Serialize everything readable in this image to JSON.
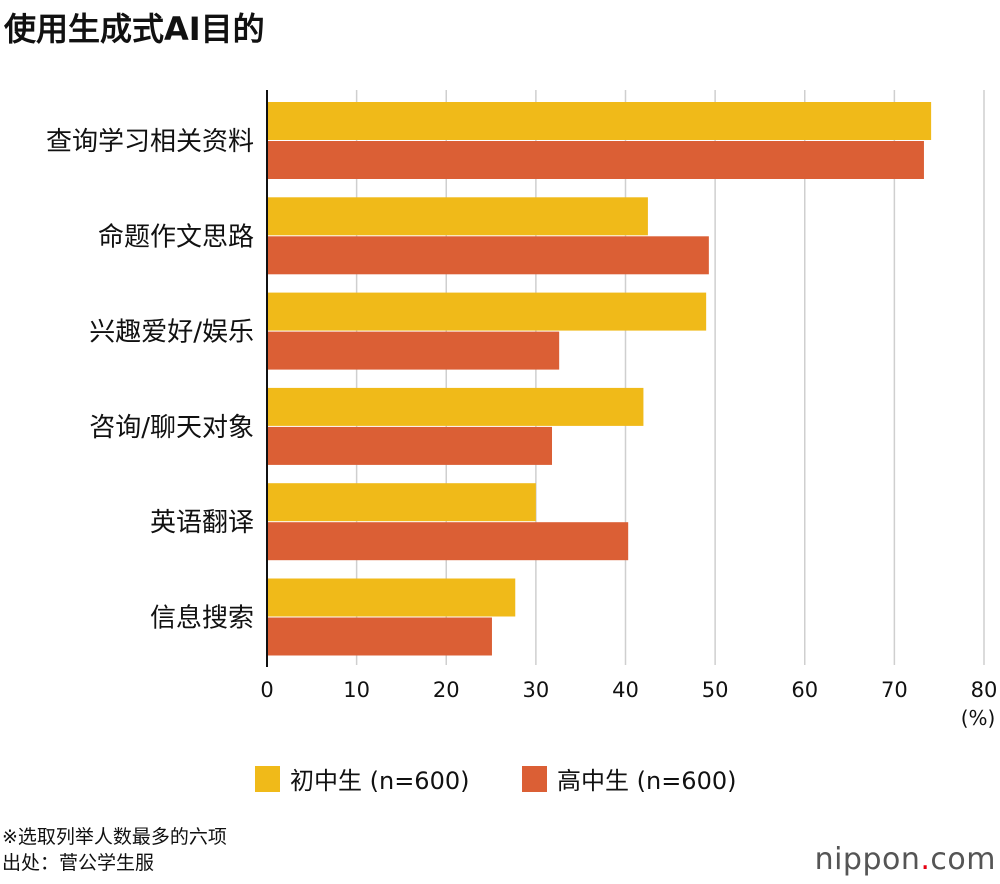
{
  "chart_data": {
    "type": "bar",
    "orientation": "horizontal",
    "title": "使用生成式AI目的",
    "categories": [
      "查询学习相关资料",
      "命题作文思路",
      "兴趣爱好/娱乐",
      "咨询/聊天对象",
      "英语翻译",
      "信息搜索"
    ],
    "series": [
      {
        "name": "初中生 (n=600)",
        "color": "#F0BA19",
        "values": [
          74.1,
          42.5,
          49.0,
          42.0,
          30.0,
          27.7
        ]
      },
      {
        "name": "高中生 (n=600)",
        "color": "#DB5F35",
        "values": [
          73.3,
          49.3,
          32.6,
          31.8,
          40.3,
          25.1
        ]
      }
    ],
    "xlim": [
      0,
      80
    ],
    "xticks": [
      "0",
      "10",
      "20",
      "30",
      "40",
      "50",
      "60",
      "70",
      "80"
    ],
    "xunit": "(%)",
    "grid": true,
    "legend": "bottom"
  },
  "notes": {
    "line1": "※选取列举人数最多的六项",
    "line2": "出处：菅公学生服"
  },
  "logo": {
    "name": "nippon",
    "dot": ".",
    "tld": "com"
  }
}
